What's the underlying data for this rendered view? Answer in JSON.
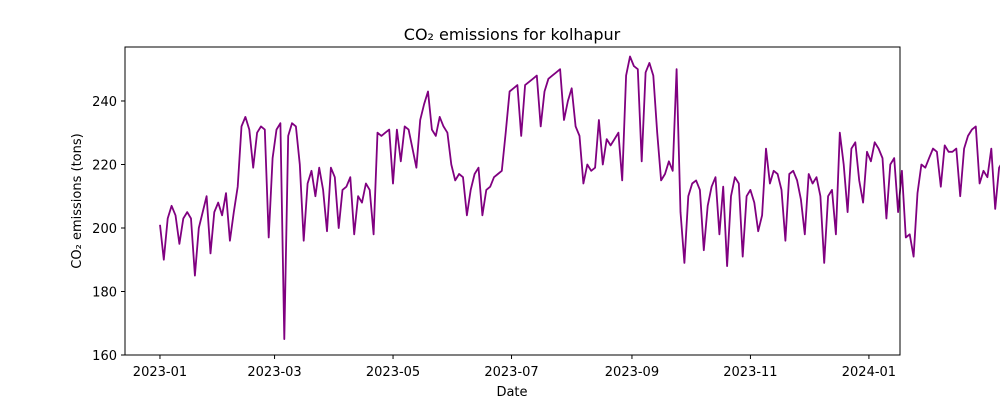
{
  "chart_data": {
    "type": "line",
    "title": "CO₂ emissions for kolhapur",
    "xlabel": "Date",
    "ylabel": "CO₂ emissions (tons)",
    "ylim": [
      160,
      257
    ],
    "yticks": [
      160,
      180,
      200,
      220,
      240
    ],
    "xlim": [
      "2022-12-14",
      "2024-01-17"
    ],
    "xticks": [
      "2023-01",
      "2023-03",
      "2023-05",
      "2023-07",
      "2023-09",
      "2023-11",
      "2024-01"
    ],
    "grid": false,
    "line_color": "#800080",
    "series": [
      {
        "x_start": "2023-01-01",
        "x_step_days": 2,
        "values": [
          201,
          190,
          203,
          207,
          204,
          195,
          203,
          205,
          203,
          185,
          200,
          205,
          210,
          192,
          205,
          208,
          204,
          211,
          196,
          205,
          213,
          232,
          235,
          231,
          219,
          230,
          232,
          231,
          197,
          222,
          231,
          233,
          165,
          229,
          233,
          232,
          220,
          196,
          214,
          218,
          210,
          219,
          212,
          199,
          219,
          216,
          200,
          212,
          213,
          216,
          198,
          210,
          208,
          214,
          212,
          198,
          230,
          229,
          230,
          231,
          214,
          231,
          221,
          232,
          231,
          225,
          219,
          234,
          239,
          243,
          231,
          229,
          235,
          232,
          230,
          220,
          215,
          217,
          216,
          204,
          212,
          217,
          219,
          204,
          212,
          213,
          216,
          217,
          218,
          230,
          243,
          244,
          245,
          229,
          245,
          246,
          247,
          248,
          232,
          243,
          247,
          248,
          249,
          250,
          234,
          240,
          244,
          232,
          229,
          214,
          220,
          218,
          219,
          234,
          220,
          228,
          226,
          228,
          230,
          215,
          248,
          254,
          251,
          250,
          221,
          249,
          252,
          248,
          230,
          215,
          217,
          221,
          218,
          250,
          205,
          189,
          210,
          214,
          215,
          212,
          193,
          207,
          213,
          216,
          198,
          213,
          188,
          210,
          216,
          214,
          191,
          210,
          212,
          208,
          199,
          204,
          225,
          214,
          218,
          217,
          212,
          196,
          217,
          218,
          215,
          209,
          198,
          217,
          214,
          216,
          210,
          189,
          210,
          212,
          198,
          230,
          220,
          205,
          225,
          227,
          215,
          208,
          224,
          221,
          227,
          225,
          222,
          203,
          220,
          222,
          205,
          218,
          197,
          198,
          191,
          211,
          220,
          219,
          222,
          225,
          224,
          213,
          226,
          224,
          224,
          225,
          210,
          225,
          229,
          231,
          232,
          214,
          218,
          216,
          225,
          206,
          219,
          221,
          230,
          233,
          225,
          230,
          235,
          238,
          225,
          213,
          225,
          222,
          232,
          231,
          220,
          234,
          236,
          225,
          239,
          237,
          229,
          204,
          229,
          226,
          222,
          205,
          200,
          211,
          215,
          213,
          212,
          200,
          213,
          215,
          208,
          212,
          206,
          224,
          222,
          226,
          218,
          246,
          230,
          214,
          212,
          213,
          227,
          215
        ]
      }
    ]
  }
}
